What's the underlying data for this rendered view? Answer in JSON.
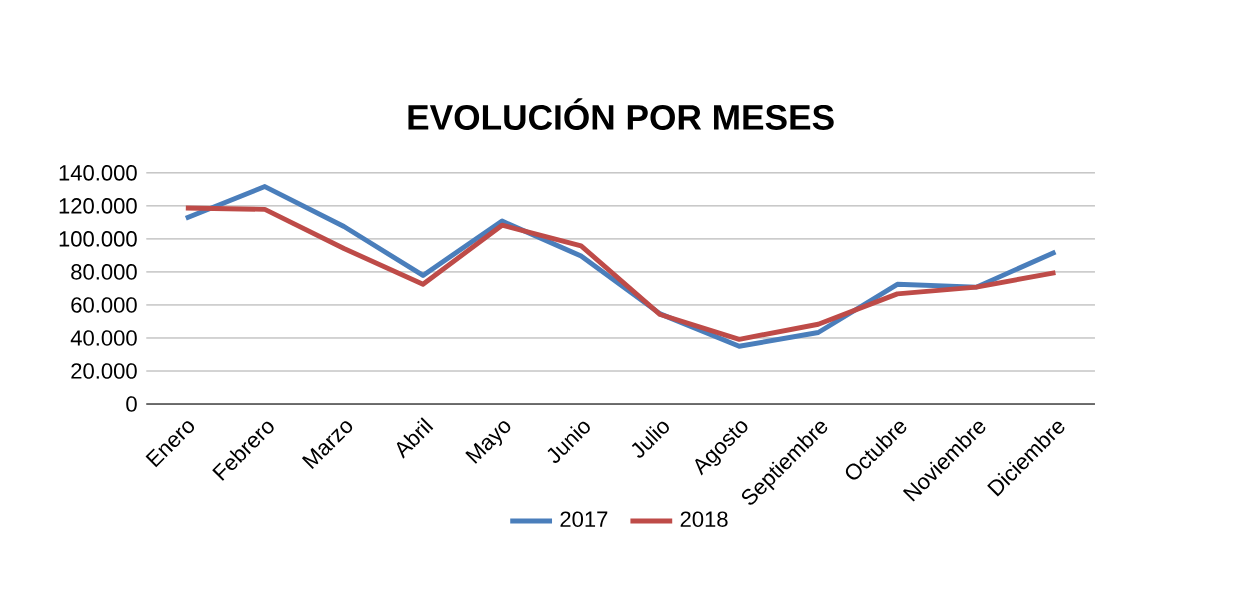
{
  "chart_data": {
    "type": "line",
    "title": "EVOLUCIÓN POR MESES",
    "categories": [
      "Enero",
      "Febrero",
      "Marzo",
      "Abril",
      "Mayo",
      "Junio",
      "Julio",
      "Agosto",
      "Septiembre",
      "Octubre",
      "Noviembre",
      "Diciembre"
    ],
    "series": [
      {
        "name": "2017",
        "color": "#4a7ebb",
        "values": [
          112500,
          131700,
          107500,
          77900,
          110800,
          89600,
          54600,
          35000,
          43300,
          72500,
          70800,
          92100
        ]
      },
      {
        "name": "2018",
        "color": "#be4b48",
        "values": [
          118700,
          117900,
          94200,
          72500,
          108300,
          95800,
          54200,
          39200,
          48300,
          66700,
          70800,
          79600
        ]
      }
    ],
    "ylim": [
      0,
      140000
    ],
    "yticks": [
      0,
      {
        "value": 20000,
        "label": "20.000"
      },
      {
        "value": 40000,
        "label": "40.000"
      },
      {
        "value": 60000,
        "label": "60.000"
      },
      {
        "value": 80000,
        "label": "80.000"
      },
      {
        "value": 100000,
        "label": "100.000"
      },
      {
        "value": 120000,
        "label": "120.000"
      },
      {
        "value": 140000,
        "label": "140.000"
      }
    ],
    "grid": "y",
    "legend": "bottom",
    "marker": "none",
    "line_style": "solid"
  }
}
